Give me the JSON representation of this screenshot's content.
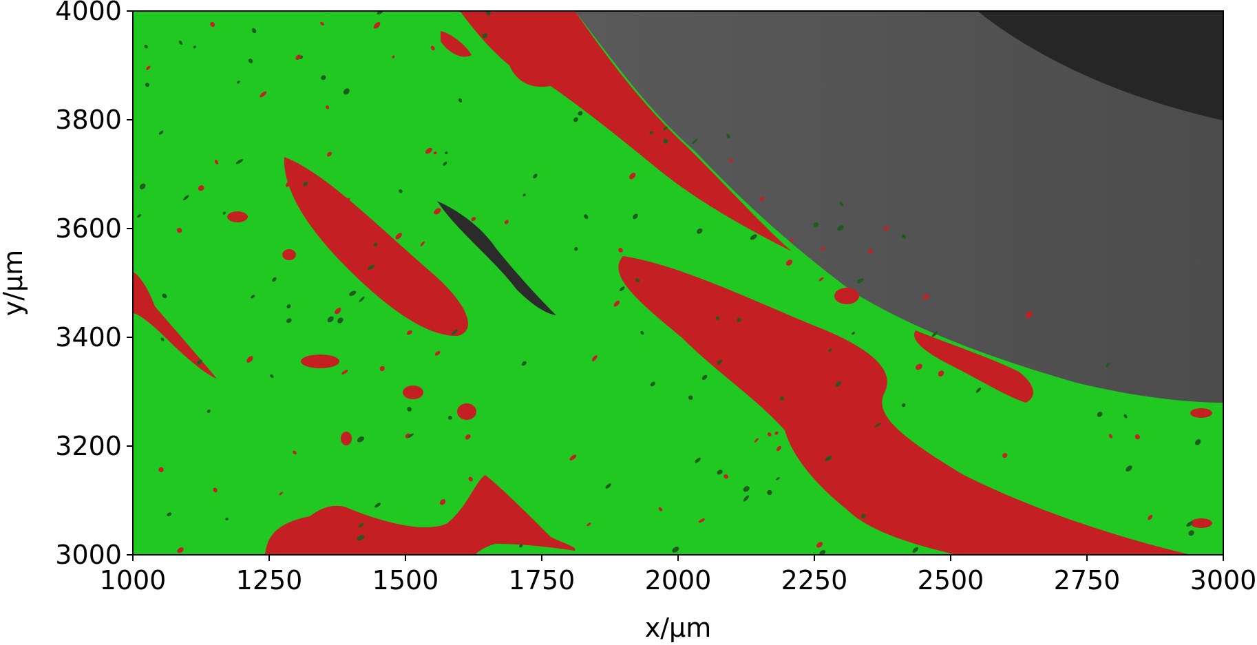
{
  "chart_data": {
    "type": "heatmap",
    "title": "",
    "xlabel": "x/µm",
    "ylabel": "y/µm",
    "xlim": [
      1000,
      3000
    ],
    "ylim": [
      3000,
      4000
    ],
    "xticks": [
      1000,
      1250,
      1500,
      1750,
      2000,
      2250,
      2500,
      2750,
      3000
    ],
    "yticks": [
      3000,
      3200,
      3400,
      3600,
      3800,
      4000
    ],
    "grid": false,
    "colors": {
      "matrix": "#22c822",
      "canal": "#c41f22",
      "crack": "#2b2b2b",
      "background_region": "#585858",
      "dark_region": "#262626"
    }
  }
}
